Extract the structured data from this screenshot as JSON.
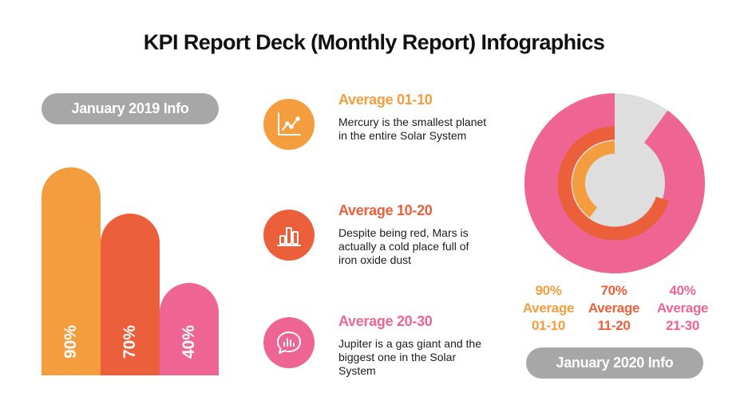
{
  "title": "KPI Report Deck (Monthly Report) Infographics",
  "colors": {
    "orange": "#f49d3f",
    "red_orange": "#ec5f3b",
    "pink": "#ee6593",
    "gray_pill": "#a7a7a7",
    "gray_track": "#dedede"
  },
  "left_panel": {
    "label": "January 2019 Info"
  },
  "right_panel": {
    "label": "January 2020 Info"
  },
  "items": [
    {
      "title": "Average 01-10",
      "description": "Mercury is the smallest planet in the entire Solar System",
      "icon": "line-chart-icon",
      "color": "#f49d3f"
    },
    {
      "title": "Average 10-20",
      "description": "Despite being red, Mars is actually a cold place full of iron oxide dust",
      "icon": "bar-chart-icon",
      "color": "#ec5f3b"
    },
    {
      "title": "Average 20-30",
      "description": "Jupiter is a gas giant and the biggest one in the Solar System",
      "icon": "chat-bar-chart-icon",
      "color": "#ee6593"
    }
  ],
  "legend": [
    {
      "value": "90%",
      "line1": "Average",
      "line2": "01-10",
      "color": "#f49d3f"
    },
    {
      "value": "70%",
      "line1": "Average",
      "line2": "11-20",
      "color": "#ec5f3b"
    },
    {
      "value": "40%",
      "line1": "Average",
      "line2": "21-30",
      "color": "#ee6593"
    }
  ],
  "chart_data": [
    {
      "type": "bar",
      "categories": [
        "90%",
        "70%",
        "40%"
      ],
      "values": [
        90,
        70,
        40
      ],
      "ylim": [
        0,
        100
      ],
      "colors": [
        "#f49d3f",
        "#ec5f3b",
        "#ee6593"
      ],
      "title": "",
      "xlabel": "",
      "ylabel": ""
    },
    {
      "type": "donut",
      "series": [
        {
          "name": "Average 01-10",
          "value": 90,
          "color": "#ee6593"
        },
        {
          "name": "Average 11-20",
          "value": 70,
          "color": "#ec5f3b"
        },
        {
          "name": "Average 21-30",
          "value": 40,
          "color": "#f49d3f"
        }
      ],
      "max": 100
    }
  ]
}
